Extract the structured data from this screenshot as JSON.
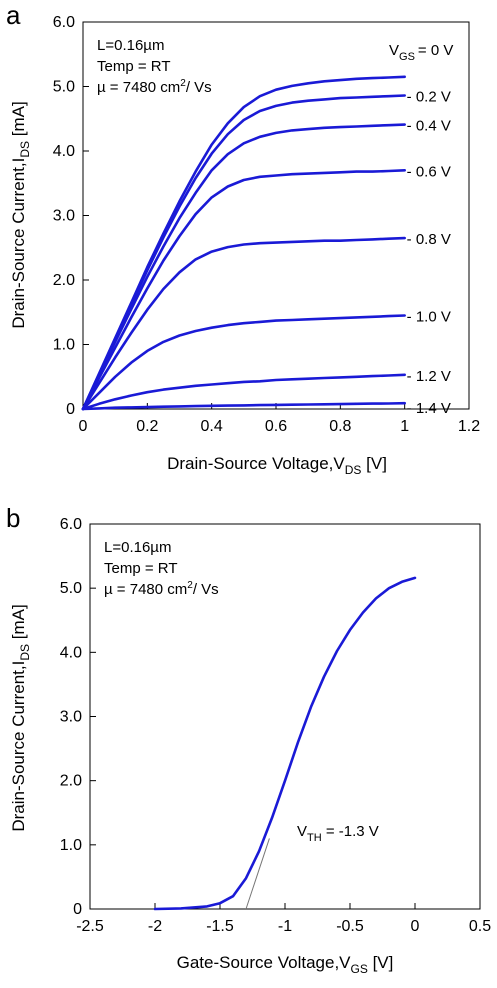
{
  "chart_data": [
    {
      "type": "line",
      "panel_label": "a",
      "xlabel": {
        "main": "Drain-Source Voltage,V",
        "sub": "DS",
        "unit": " [V]"
      },
      "ylabel": {
        "main": "Drain-Source Current,I",
        "sub": "DS",
        "unit": " [mA]"
      },
      "xlim": [
        0,
        1.2
      ],
      "ylim": [
        0,
        6.0
      ],
      "xticks": [
        "0",
        "0.2",
        "0.4",
        "0.6",
        "0.8",
        "1",
        "1.2"
      ],
      "yticks": [
        "0",
        "1.0",
        "2.0",
        "3.0",
        "4.0",
        "5.0",
        "6.0"
      ],
      "annotations": {
        "line1": "L=0.16µm",
        "line2": "Temp = RT",
        "line3_main": "µ = 7480 cm",
        "line3_sup": "2",
        "line3_tail": "/ Vs"
      },
      "legend_header": {
        "main": "V",
        "sub": "GS",
        "tail": "= 0 V"
      },
      "x": [
        0,
        0.05,
        0.1,
        0.15,
        0.2,
        0.25,
        0.3,
        0.35,
        0.4,
        0.45,
        0.5,
        0.55,
        0.6,
        0.65,
        0.7,
        0.75,
        0.8,
        0.85,
        0.9,
        0.95,
        1.0
      ],
      "series": [
        {
          "name": "= 0 V",
          "values": [
            0,
            0.55,
            1.1,
            1.65,
            2.2,
            2.72,
            3.22,
            3.68,
            4.1,
            4.43,
            4.68,
            4.85,
            4.95,
            5.01,
            5.05,
            5.08,
            5.1,
            5.12,
            5.13,
            5.14,
            5.15
          ]
        },
        {
          "name": "- 0.2 V",
          "values": [
            0,
            0.54,
            1.08,
            1.62,
            2.15,
            2.66,
            3.14,
            3.58,
            3.96,
            4.26,
            4.48,
            4.62,
            4.7,
            4.75,
            4.78,
            4.8,
            4.82,
            4.83,
            4.84,
            4.85,
            4.86
          ]
        },
        {
          "name": "- 0.4 V",
          "values": [
            0,
            0.52,
            1.04,
            1.55,
            2.05,
            2.52,
            2.96,
            3.35,
            3.7,
            3.95,
            4.12,
            4.22,
            4.28,
            4.32,
            4.34,
            4.36,
            4.37,
            4.38,
            4.39,
            4.4,
            4.41
          ]
        },
        {
          "name": "- 0.6 V",
          "values": [
            0,
            0.48,
            0.95,
            1.42,
            1.87,
            2.3,
            2.68,
            3.02,
            3.28,
            3.45,
            3.55,
            3.6,
            3.62,
            3.64,
            3.65,
            3.66,
            3.67,
            3.68,
            3.68,
            3.69,
            3.7
          ]
        },
        {
          "name": "- 0.8 V",
          "values": [
            0,
            0.4,
            0.8,
            1.18,
            1.54,
            1.86,
            2.12,
            2.32,
            2.44,
            2.51,
            2.55,
            2.57,
            2.58,
            2.59,
            2.6,
            2.61,
            2.61,
            2.62,
            2.63,
            2.64,
            2.65
          ]
        },
        {
          "name": "- 1.0 V",
          "values": [
            0,
            0.25,
            0.5,
            0.72,
            0.9,
            1.04,
            1.14,
            1.21,
            1.26,
            1.3,
            1.33,
            1.35,
            1.37,
            1.38,
            1.39,
            1.4,
            1.41,
            1.42,
            1.43,
            1.44,
            1.45
          ]
        },
        {
          "name": "- 1.2 V",
          "values": [
            0,
            0.08,
            0.15,
            0.21,
            0.26,
            0.3,
            0.33,
            0.36,
            0.38,
            0.4,
            0.42,
            0.43,
            0.45,
            0.46,
            0.47,
            0.48,
            0.49,
            0.5,
            0.51,
            0.52,
            0.53
          ]
        },
        {
          "name": "- 1.4 V",
          "values": [
            0,
            0.01,
            0.02,
            0.025,
            0.03,
            0.035,
            0.04,
            0.045,
            0.05,
            0.053,
            0.056,
            0.06,
            0.063,
            0.066,
            0.07,
            0.073,
            0.076,
            0.08,
            0.083,
            0.086,
            0.09
          ]
        }
      ]
    },
    {
      "type": "line",
      "panel_label": "b",
      "xlabel": {
        "main": "Gate-Source Voltage,V",
        "sub": "GS",
        "unit": " [V]"
      },
      "ylabel": {
        "main": "Drain-Source Current,I",
        "sub": "DS",
        "unit": " [mA]"
      },
      "xlim": [
        -2.5,
        0.5
      ],
      "ylim": [
        0,
        6.0
      ],
      "xticks": [
        "-2.5",
        "-2",
        "-1.5",
        "-1",
        "-0.5",
        "0",
        "0.5"
      ],
      "yticks": [
        "0",
        "1.0",
        "2.0",
        "3.0",
        "4.0",
        "5.0",
        "6.0"
      ],
      "annotations": {
        "line1": "L=0.16µm",
        "line2": "Temp = RT",
        "line3_main": "µ = 7480 cm",
        "line3_sup": "2",
        "line3_tail": "/ Vs"
      },
      "threshold_label": {
        "main": "V",
        "sub": "TH",
        "tail": " = -1.3 V"
      },
      "threshold_value": -1.3,
      "x": [
        -2.0,
        -1.8,
        -1.6,
        -1.5,
        -1.4,
        -1.3,
        -1.2,
        -1.1,
        -1.0,
        -0.9,
        -0.8,
        -0.7,
        -0.6,
        -0.5,
        -0.4,
        -0.3,
        -0.2,
        -0.1,
        0.0
      ],
      "series": [
        {
          "name": "",
          "values": [
            0.0,
            0.01,
            0.04,
            0.09,
            0.2,
            0.48,
            0.9,
            1.42,
            2.0,
            2.6,
            3.15,
            3.62,
            4.02,
            4.35,
            4.62,
            4.84,
            5.0,
            5.1,
            5.16
          ]
        }
      ]
    }
  ]
}
